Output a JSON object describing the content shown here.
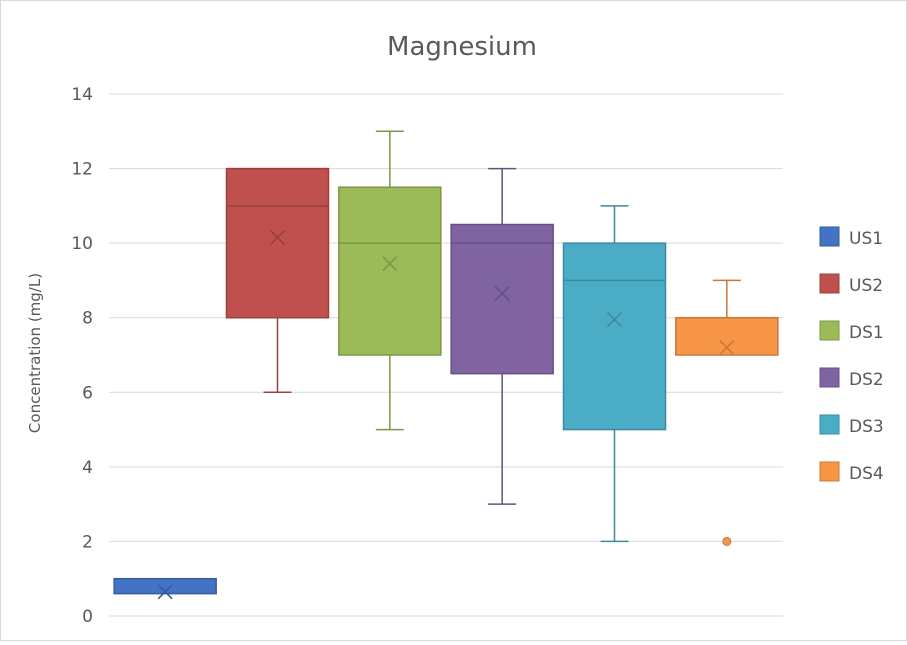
{
  "chart_data": {
    "type": "box",
    "title": "Magnesium",
    "xlabel": "",
    "ylabel": "Concentration (mg/L)",
    "ylim": [
      0,
      14
    ],
    "yticks": [
      0,
      2,
      4,
      6,
      8,
      10,
      12,
      14
    ],
    "grid": true,
    "legend_position": "right",
    "series": [
      {
        "name": "US1",
        "color": "#4472C4",
        "whisker_low": 0.6,
        "q1": 0.6,
        "median": 0.6,
        "q3": 1.0,
        "whisker_high": 1.0,
        "mean": 0.65,
        "outliers": []
      },
      {
        "name": "US2",
        "color": "#C0504D",
        "whisker_low": 6,
        "q1": 8,
        "median": 11,
        "q3": 12,
        "whisker_high": 12,
        "mean": 10.15,
        "outliers": []
      },
      {
        "name": "DS1",
        "color": "#9BBB59",
        "whisker_low": 5,
        "q1": 7,
        "median": 10,
        "q3": 11.5,
        "whisker_high": 13,
        "mean": 9.45,
        "outliers": []
      },
      {
        "name": "DS2",
        "color": "#8064A2",
        "whisker_low": 3,
        "q1": 6.5,
        "median": 10,
        "q3": 10.5,
        "whisker_high": 12,
        "mean": 8.65,
        "outliers": []
      },
      {
        "name": "DS3",
        "color": "#4BACC6",
        "whisker_low": 2,
        "q1": 5,
        "median": 9,
        "q3": 10,
        "whisker_high": 11,
        "mean": 7.95,
        "outliers": []
      },
      {
        "name": "DS4",
        "color": "#F79646",
        "whisker_low": 7,
        "q1": 7,
        "median": 7,
        "q3": 8,
        "whisker_high": 9,
        "mean": 7.2,
        "outliers": [
          2
        ]
      }
    ]
  }
}
